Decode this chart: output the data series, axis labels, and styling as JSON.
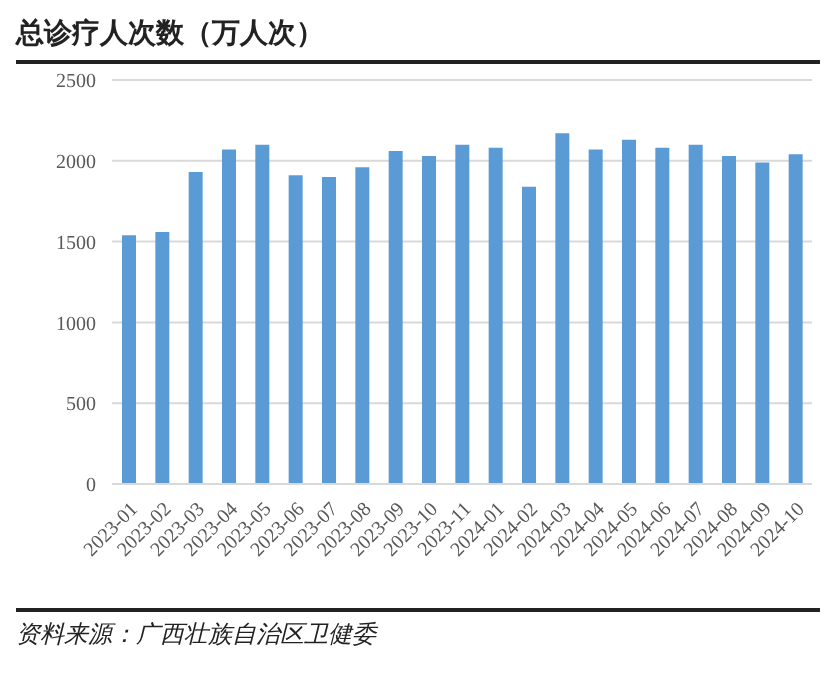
{
  "chart_data": {
    "type": "bar",
    "title": "总诊疗人次数（万人次）",
    "categories": [
      "2023-01",
      "2023-02",
      "2023-03",
      "2023-04",
      "2023-05",
      "2023-06",
      "2023-07",
      "2023-08",
      "2023-09",
      "2023-10",
      "2023-11",
      "2024-01",
      "2024-02",
      "2024-03",
      "2024-04",
      "2024-05",
      "2024-06",
      "2024-07",
      "2024-08",
      "2024-09",
      "2024-10"
    ],
    "values": [
      1540,
      1560,
      1930,
      2070,
      2100,
      1910,
      1900,
      1960,
      2060,
      2030,
      2100,
      2080,
      1840,
      2170,
      2070,
      2130,
      2080,
      2100,
      2030,
      1990,
      2040
    ],
    "color": "#5b9bd5",
    "ylim": [
      0,
      2500
    ],
    "yticks": [
      0,
      500,
      1000,
      1500,
      2000,
      2500
    ],
    "grid": "y",
    "annotations": [
      "资料来源：广西壮族自治区卫健委"
    ]
  }
}
